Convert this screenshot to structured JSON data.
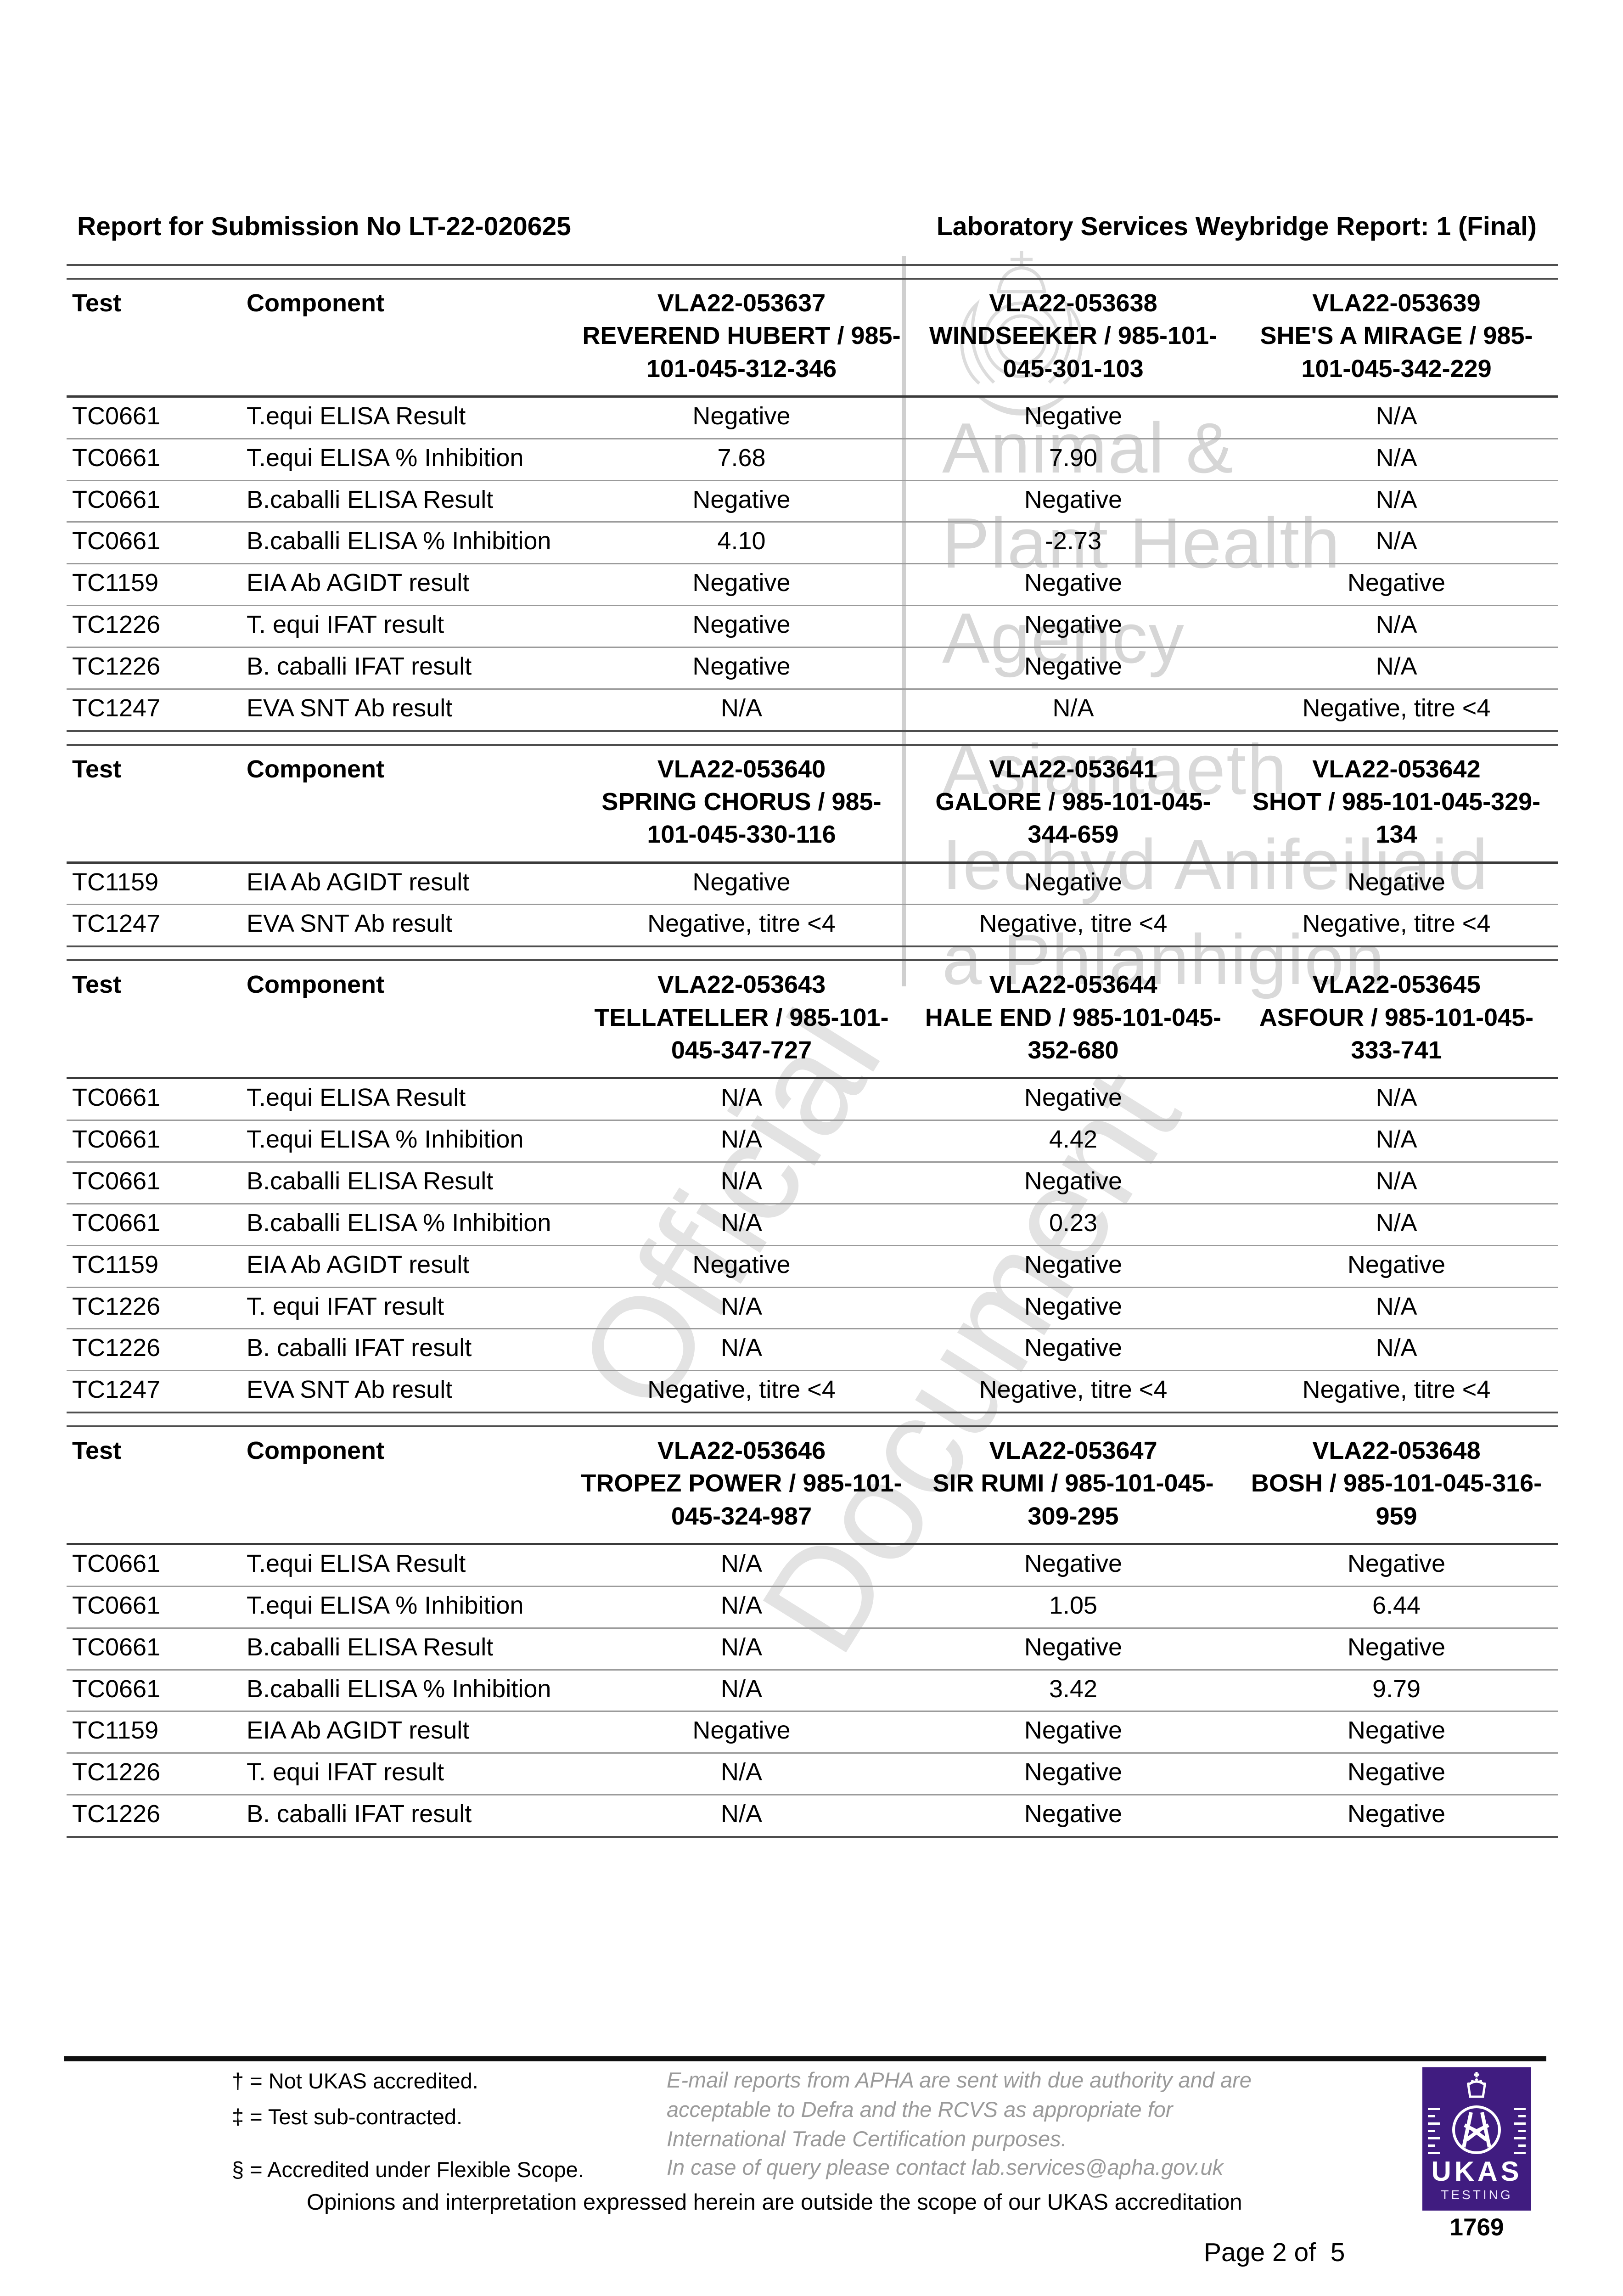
{
  "page": {
    "title_left": "Report for Submission No LT-22-020625",
    "title_right": "Laboratory Services Weybridge Report: 1 (Final)",
    "page_number": "Page 2 of  5"
  },
  "watermarks": {
    "agency_en": [
      "Animal &",
      "Plant Health",
      "Agency"
    ],
    "agency_cy": [
      "Asiantaeth",
      "Iechyd Anifeiliaid",
      "a Phlanhigion"
    ],
    "diagonal": [
      "Official",
      "Document"
    ]
  },
  "tables": [
    {
      "headers": {
        "test": "Test",
        "component": "Component",
        "samples": [
          {
            "id": "VLA22-053637",
            "name": "REVEREND HUBERT / 985-101-045-312-346"
          },
          {
            "id": "VLA22-053638",
            "name": "WINDSEEKER / 985-101-045-301-103"
          },
          {
            "id": "VLA22-053639",
            "name": "SHE'S A MIRAGE / 985-101-045-342-229"
          }
        ]
      },
      "rows": [
        [
          "TC0661",
          "T.equi ELISA Result",
          "Negative",
          "Negative",
          "N/A"
        ],
        [
          "TC0661",
          "T.equi ELISA % Inhibition",
          "7.68",
          "7.90",
          "N/A"
        ],
        [
          "TC0661",
          "B.caballi ELISA Result",
          "Negative",
          "Negative",
          "N/A"
        ],
        [
          "TC0661",
          "B.caballi ELISA % Inhibition",
          "4.10",
          "-2.73",
          "N/A"
        ],
        [
          "TC1159",
          "EIA Ab AGIDT result",
          "Negative",
          "Negative",
          "Negative"
        ],
        [
          "TC1226",
          "T. equi IFAT result",
          "Negative",
          "Negative",
          "N/A"
        ],
        [
          "TC1226",
          "B. caballi IFAT result",
          "Negative",
          "Negative",
          "N/A"
        ],
        [
          "TC1247",
          "EVA SNT Ab result",
          "N/A",
          "N/A",
          "Negative, titre <4"
        ]
      ]
    },
    {
      "headers": {
        "test": "Test",
        "component": "Component",
        "samples": [
          {
            "id": "VLA22-053640",
            "name": "SPRING CHORUS / 985-101-045-330-116"
          },
          {
            "id": "VLA22-053641",
            "name": "GALORE / 985-101-045-344-659"
          },
          {
            "id": "VLA22-053642",
            "name": "SHOT / 985-101-045-329-134"
          }
        ]
      },
      "rows": [
        [
          "TC1159",
          "EIA Ab AGIDT result",
          "Negative",
          "Negative",
          "Negative"
        ],
        [
          "TC1247",
          "EVA SNT Ab result",
          "Negative, titre <4",
          "Negative, titre <4",
          "Negative, titre <4"
        ]
      ]
    },
    {
      "headers": {
        "test": "Test",
        "component": "Component",
        "samples": [
          {
            "id": "VLA22-053643",
            "name": "TELLATELLER / 985-101-045-347-727"
          },
          {
            "id": "VLA22-053644",
            "name": "HALE END / 985-101-045-352-680"
          },
          {
            "id": "VLA22-053645",
            "name": "ASFOUR / 985-101-045-333-741"
          }
        ]
      },
      "rows": [
        [
          "TC0661",
          "T.equi ELISA Result",
          "N/A",
          "Negative",
          "N/A"
        ],
        [
          "TC0661",
          "T.equi ELISA % Inhibition",
          "N/A",
          "4.42",
          "N/A"
        ],
        [
          "TC0661",
          "B.caballi ELISA Result",
          "N/A",
          "Negative",
          "N/A"
        ],
        [
          "TC0661",
          "B.caballi ELISA % Inhibition",
          "N/A",
          "0.23",
          "N/A"
        ],
        [
          "TC1159",
          "EIA Ab AGIDT result",
          "Negative",
          "Negative",
          "Negative"
        ],
        [
          "TC1226",
          "T. equi IFAT result",
          "N/A",
          "Negative",
          "N/A"
        ],
        [
          "TC1226",
          "B. caballi IFAT result",
          "N/A",
          "Negative",
          "N/A"
        ],
        [
          "TC1247",
          "EVA SNT Ab result",
          "Negative, titre <4",
          "Negative, titre <4",
          "Negative, titre <4"
        ]
      ]
    },
    {
      "headers": {
        "test": "Test",
        "component": "Component",
        "samples": [
          {
            "id": "VLA22-053646",
            "name": "TROPEZ POWER / 985-101-045-324-987"
          },
          {
            "id": "VLA22-053647",
            "name": "SIR RUMI / 985-101-045-309-295"
          },
          {
            "id": "VLA22-053648",
            "name": "BOSH / 985-101-045-316-959"
          }
        ]
      },
      "rows": [
        [
          "TC0661",
          "T.equi ELISA Result",
          "N/A",
          "Negative",
          "Negative"
        ],
        [
          "TC0661",
          "T.equi ELISA % Inhibition",
          "N/A",
          "1.05",
          "6.44"
        ],
        [
          "TC0661",
          "B.caballi ELISA Result",
          "N/A",
          "Negative",
          "Negative"
        ],
        [
          "TC0661",
          "B.caballi ELISA % Inhibition",
          "N/A",
          "3.42",
          "9.79"
        ],
        [
          "TC1159",
          "EIA Ab AGIDT result",
          "Negative",
          "Negative",
          "Negative"
        ],
        [
          "TC1226",
          "T. equi IFAT result",
          "N/A",
          "Negative",
          "Negative"
        ],
        [
          "TC1226",
          "B. caballi IFAT result",
          "N/A",
          "Negative",
          "Negative"
        ]
      ]
    }
  ],
  "footer": {
    "footnotes": [
      "† = Not UKAS accredited.",
      "‡ = Test sub-contracted.",
      "§ = Accredited under Flexible Scope."
    ],
    "authority_note": "E-mail reports from APHA are sent with due authority and are acceptable to Defra and the RCVS as appropriate for International Trade Certification purposes.",
    "query_note": "In case of query please contact lab.services@apha.gov.uk",
    "opinions_note": "Opinions and interpretation expressed herein are outside the scope of our UKAS accreditation",
    "ukas": {
      "name": "UKAS",
      "category": "TESTING",
      "number": "1769",
      "purple": "#401C80"
    }
  }
}
